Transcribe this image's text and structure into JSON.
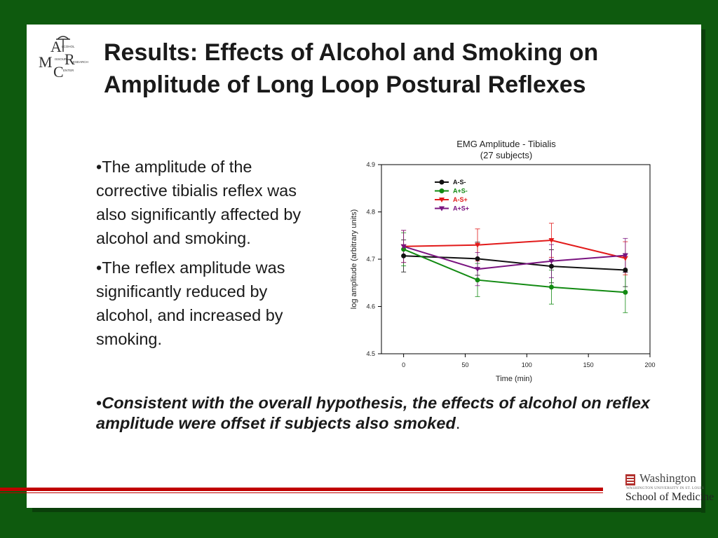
{
  "title": "Results: Effects of Alcohol and Smoking on Amplitude of Long Loop Postural Reflexes",
  "logo_letters": "AMCR",
  "logo_words": [
    "LCOHOL",
    "ISSOURI",
    "ESEARCH",
    "ENTER"
  ],
  "bullets": [
    "•The amplitude of the corrective tibialis reflex was also significantly affected by alcohol and smoking.",
    "•The reflex amplitude was significantly reduced by alcohol, and increased by smoking."
  ],
  "conclusion": {
    "prefix": "•",
    "emphasis": "Consistent with the overall hypothesis, the effects of alcohol on reflex amplitude were offset if subjects also smoked",
    "suffix": "."
  },
  "footer": {
    "university": "Washington",
    "university_sub": "WASHINGTON UNIVERSITY IN ST. LOUIS",
    "school": "School of Medicine"
  },
  "colors": {
    "background": "#0e5a0e",
    "accent_line": "#c00000"
  },
  "chart_data": {
    "type": "line",
    "title": "EMG Amplitude - Tibialis",
    "subtitle": "(27 subjects)",
    "xlabel": "Time (min)",
    "ylabel": "log amplitude (arbitrary units)",
    "xlim": [
      -18,
      200
    ],
    "ylim": [
      4.5,
      4.9
    ],
    "xticks": [
      0,
      50,
      100,
      150,
      200
    ],
    "yticks": [
      4.5,
      4.6,
      4.7,
      4.8,
      4.9
    ],
    "grid": false,
    "legend_position": "top-left",
    "x": [
      0,
      60,
      120,
      180
    ],
    "series": [
      {
        "name": "A-S-",
        "color": "#111111",
        "marker": "circle",
        "values": [
          4.707,
          4.701,
          4.685,
          4.677
        ],
        "errors": [
          0.034,
          0.035,
          0.035,
          0.035
        ]
      },
      {
        "name": "A+S-",
        "color": "#128a12",
        "marker": "circle",
        "values": [
          4.721,
          4.656,
          4.641,
          4.63
        ],
        "errors": [
          0.035,
          0.035,
          0.036,
          0.043
        ]
      },
      {
        "name": "A-S+",
        "color": "#e21a1a",
        "marker": "triangle-down",
        "values": [
          4.727,
          4.73,
          4.74,
          4.702
        ],
        "errors": [
          0.034,
          0.034,
          0.036,
          0.035
        ]
      },
      {
        "name": "A+S+",
        "color": "#7a1480",
        "marker": "triangle-down",
        "values": [
          4.727,
          4.679,
          4.696,
          4.708
        ],
        "errors": [
          0.034,
          0.035,
          0.035,
          0.036
        ]
      }
    ]
  }
}
